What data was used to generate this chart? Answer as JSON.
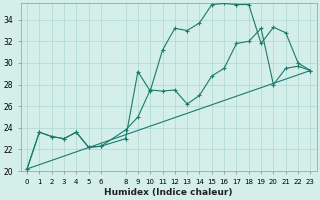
{
  "xlabel": "Humidex (Indice chaleur)",
  "bg_color": "#d4eeea",
  "grid_color": "#aed8d2",
  "line_color": "#1a7a6e",
  "xlim": [
    -0.5,
    23.5
  ],
  "ylim": [
    20,
    35.5
  ],
  "yticks": [
    20,
    22,
    24,
    26,
    28,
    30,
    32,
    34
  ],
  "xticks": [
    0,
    1,
    2,
    3,
    4,
    5,
    6,
    8,
    9,
    10,
    11,
    12,
    13,
    14,
    15,
    16,
    17,
    18,
    19,
    20,
    21,
    22,
    23
  ],
  "line1_x": [
    0,
    1,
    2,
    3,
    4,
    5,
    6,
    8,
    9,
    10,
    11,
    12,
    13,
    14,
    15,
    16,
    17,
    18,
    19,
    20,
    21,
    22,
    23
  ],
  "line1_y": [
    20.2,
    23.6,
    23.2,
    23.0,
    23.6,
    22.2,
    22.3,
    23.0,
    29.2,
    27.4,
    31.2,
    33.2,
    33.0,
    33.7,
    35.4,
    35.5,
    35.4,
    35.4,
    31.8,
    33.3,
    32.8,
    30.0,
    29.3
  ],
  "line2_x": [
    0,
    1,
    2,
    3,
    4,
    5,
    6,
    8,
    9,
    10,
    11,
    12,
    13,
    14,
    15,
    16,
    17,
    18,
    19,
    20,
    21,
    22,
    23
  ],
  "line2_y": [
    20.2,
    23.6,
    23.2,
    23.0,
    23.6,
    22.2,
    22.3,
    23.8,
    25.0,
    27.5,
    27.4,
    27.5,
    26.2,
    27.0,
    28.8,
    29.5,
    31.8,
    32.0,
    33.2,
    28.0,
    29.5,
    29.7,
    29.3
  ],
  "line3_x": [
    0,
    23
  ],
  "line3_y": [
    20.2,
    29.3
  ]
}
